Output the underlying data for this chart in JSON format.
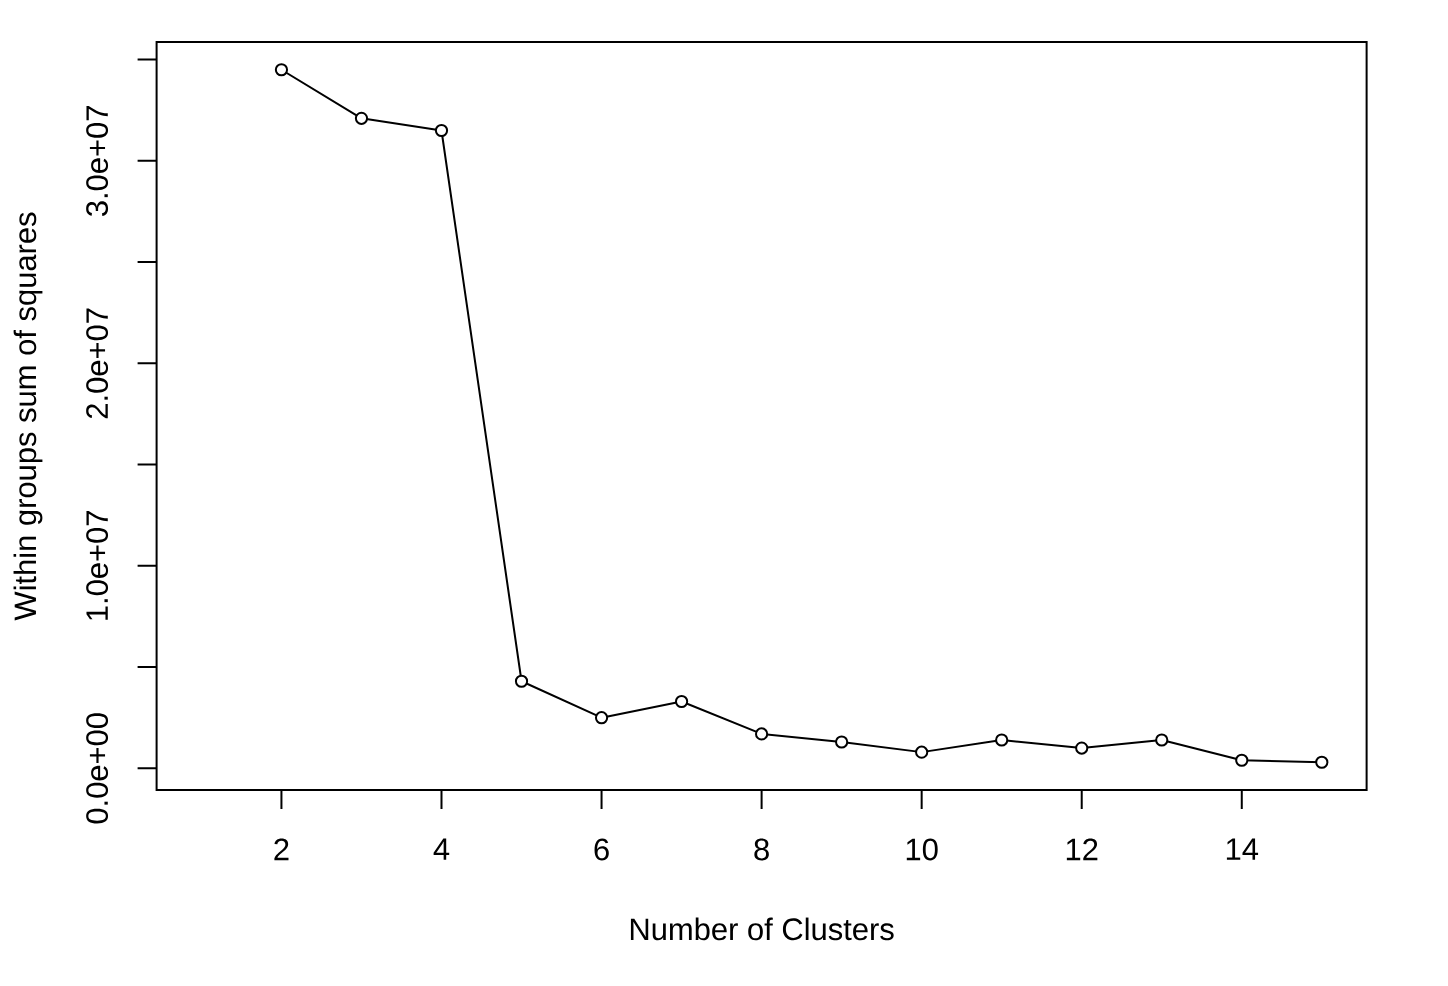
{
  "chart_data": {
    "type": "line",
    "xlabel": "Number of Clusters",
    "ylabel": "Within groups sum of squares",
    "x": [
      2,
      3,
      4,
      5,
      6,
      7,
      8,
      9,
      10,
      11,
      12,
      13,
      14,
      15
    ],
    "values": [
      34500000,
      32100000,
      31500000,
      4300000,
      2500000,
      3300000,
      1700000,
      1300000,
      800000,
      1400000,
      1000000,
      1400000,
      400000,
      300000
    ],
    "color": "#000000",
    "marker": "circle",
    "line_style": "solid",
    "xlim": [
      0.44,
      15.56
    ],
    "ylim": [
      -1070000,
      35870000
    ],
    "xticks": [
      2,
      4,
      6,
      8,
      10,
      12,
      14
    ],
    "yticks": [
      {
        "value": 0,
        "label": "0.0e+00"
      },
      {
        "value": 5000000,
        "label": null
      },
      {
        "value": 10000000,
        "label": "1.0e+07"
      },
      {
        "value": 15000000,
        "label": null
      },
      {
        "value": 20000000,
        "label": "2.0e+07"
      },
      {
        "value": 25000000,
        "label": null
      },
      {
        "value": 30000000,
        "label": "3.0e+07"
      },
      {
        "value": 35000000,
        "label": null
      }
    ]
  }
}
